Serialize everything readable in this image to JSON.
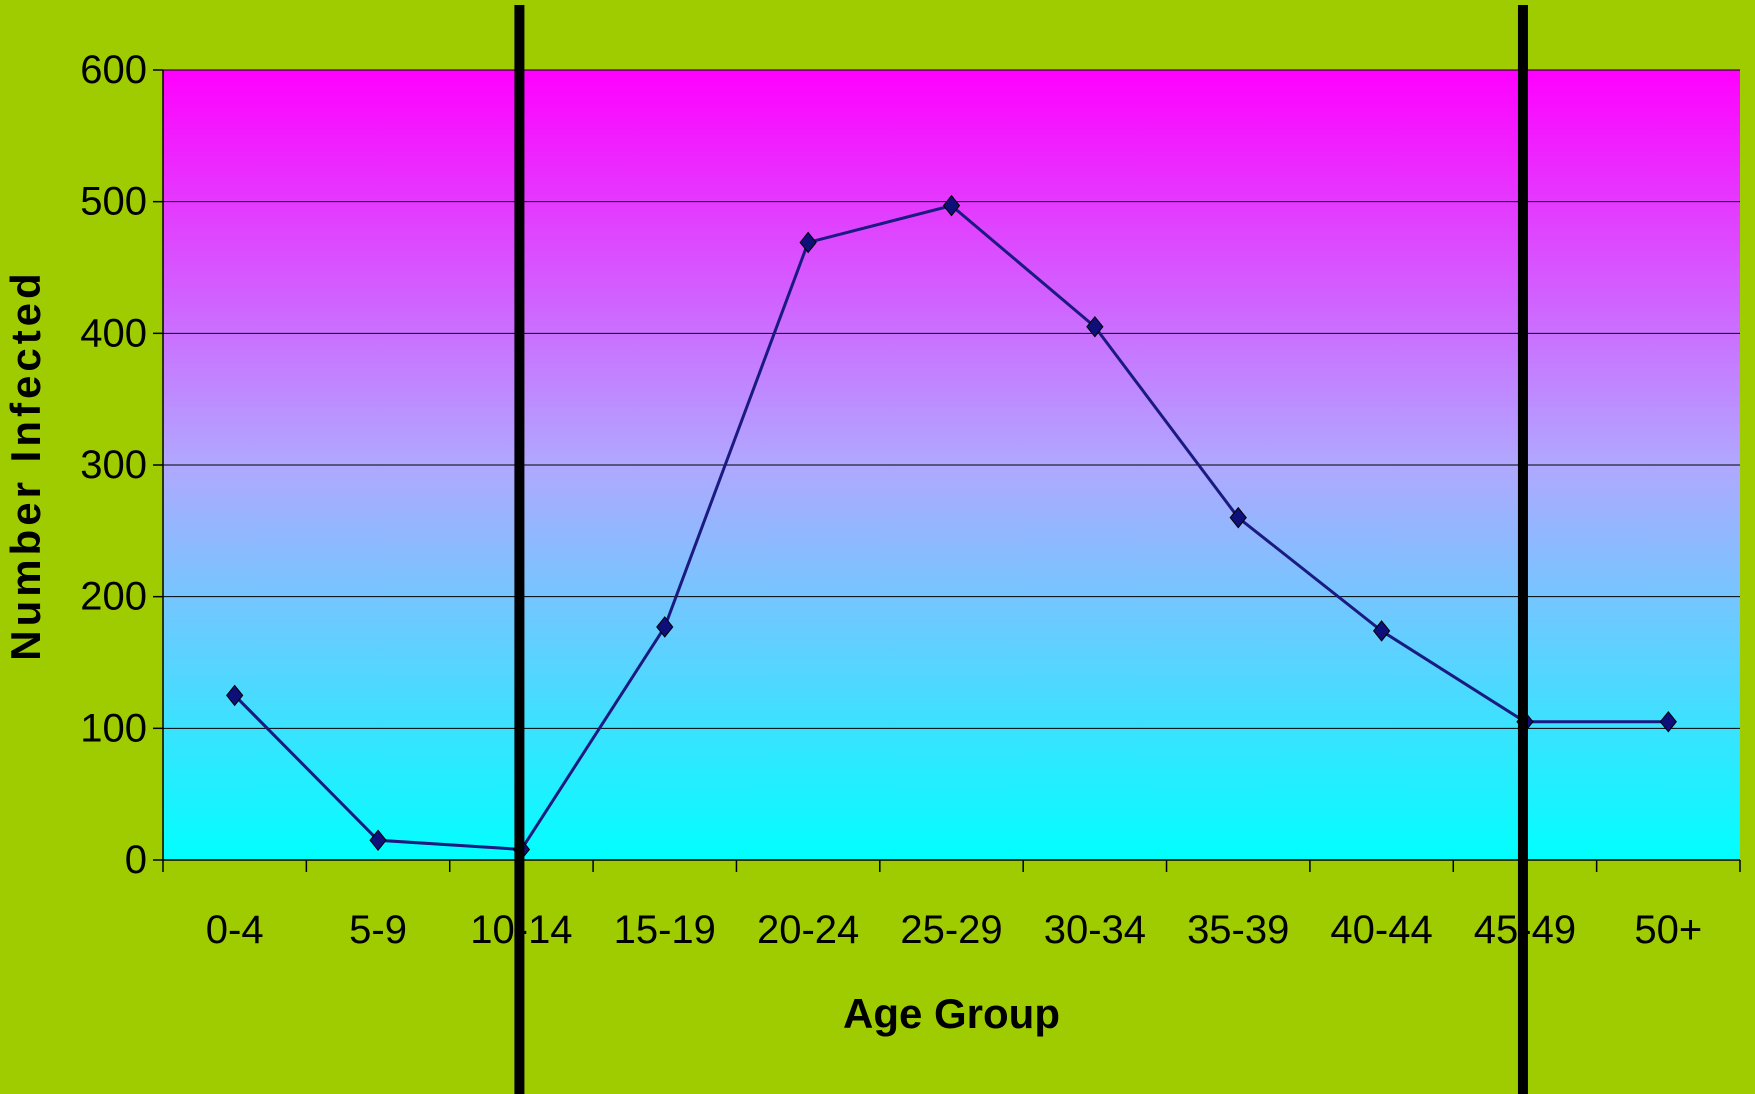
{
  "chart_data": {
    "type": "line",
    "title": "",
    "xlabel": "Age Group",
    "ylabel": "Number Infected",
    "categories": [
      "0-4",
      "5-9",
      "10-14",
      "15-19",
      "20-24",
      "25-29",
      "30-34",
      "35-39",
      "40-44",
      "45-49",
      "50+"
    ],
    "values": [
      125,
      15,
      8,
      177,
      469,
      497,
      405,
      260,
      174,
      105,
      105
    ],
    "ylim": [
      0,
      600
    ],
    "yticks": [
      0,
      100,
      200,
      300,
      400,
      500,
      600
    ],
    "grid": true,
    "legend": "none",
    "vertical_markers_at_categories": [
      "10-14",
      "45-49"
    ],
    "colors": {
      "background": "#9ECC00",
      "plot_gradient_top": "#FF00FF",
      "plot_gradient_middle": "#B0A8FF",
      "plot_gradient_bottom": "#00FFFF",
      "line": "#1A1A80",
      "marker": "#0F0F7A",
      "marker_line": "#000000"
    }
  }
}
